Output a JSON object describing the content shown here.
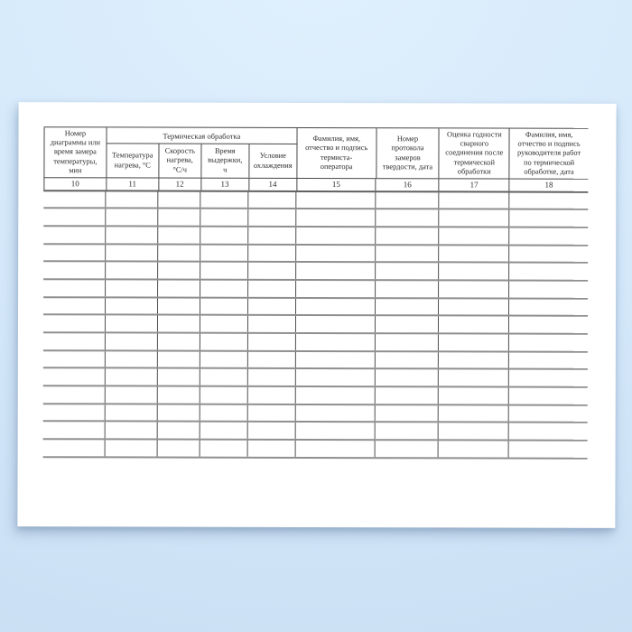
{
  "document": {
    "table": {
      "group_header": {
        "label": "Термическая обработка"
      },
      "columns": [
        {
          "number": "10",
          "label": "Номер\nдиаграммы или\nвремя замера\nтемпературы,\nмин"
        },
        {
          "number": "11",
          "label": "Температура\nнагрева, °С"
        },
        {
          "number": "12",
          "label": "Скорость\nнагрева,\n°С/ч"
        },
        {
          "number": "13",
          "label": "Время\nвыдержки,\nч"
        },
        {
          "number": "14",
          "label": "Условие\nохлаждения"
        },
        {
          "number": "15",
          "label": "Фамилия, имя,\nотчество и подпись\nтермиста-\nоператора"
        },
        {
          "number": "16",
          "label": "Номер\nпротокола\nзамеров\nтвердости, дата"
        },
        {
          "number": "17",
          "label": "Оценка годности\nсварного\nсоединения после\nтермической\nобработки"
        },
        {
          "number": "18",
          "label": "Фамилия, имя,\nотчество и подпись\nруководителя работ\nпо термической\nобработке, дата"
        }
      ],
      "body_rows": [
        [
          "",
          "",
          "",
          "",
          "",
          "",
          "",
          "",
          ""
        ],
        [
          "",
          "",
          "",
          "",
          "",
          "",
          "",
          "",
          ""
        ],
        [
          "",
          "",
          "",
          "",
          "",
          "",
          "",
          "",
          ""
        ],
        [
          "",
          "",
          "",
          "",
          "",
          "",
          "",
          "",
          ""
        ],
        [
          "",
          "",
          "",
          "",
          "",
          "",
          "",
          "",
          ""
        ],
        [
          "",
          "",
          "",
          "",
          "",
          "",
          "",
          "",
          ""
        ],
        [
          "",
          "",
          "",
          "",
          "",
          "",
          "",
          "",
          ""
        ],
        [
          "",
          "",
          "",
          "",
          "",
          "",
          "",
          "",
          ""
        ],
        [
          "",
          "",
          "",
          "",
          "",
          "",
          "",
          "",
          ""
        ],
        [
          "",
          "",
          "",
          "",
          "",
          "",
          "",
          "",
          ""
        ],
        [
          "",
          "",
          "",
          "",
          "",
          "",
          "",
          "",
          ""
        ],
        [
          "",
          "",
          "",
          "",
          "",
          "",
          "",
          "",
          ""
        ],
        [
          "",
          "",
          "",
          "",
          "",
          "",
          "",
          "",
          ""
        ],
        [
          "",
          "",
          "",
          "",
          "",
          "",
          "",
          "",
          ""
        ],
        [
          "",
          "",
          "",
          "",
          "",
          "",
          "",
          "",
          ""
        ]
      ]
    },
    "colors": {
      "paper": "#ffffff",
      "background_blue": "#d6eafb",
      "rule_gray": "#8f8f8f",
      "line_dark": "#474747"
    }
  }
}
